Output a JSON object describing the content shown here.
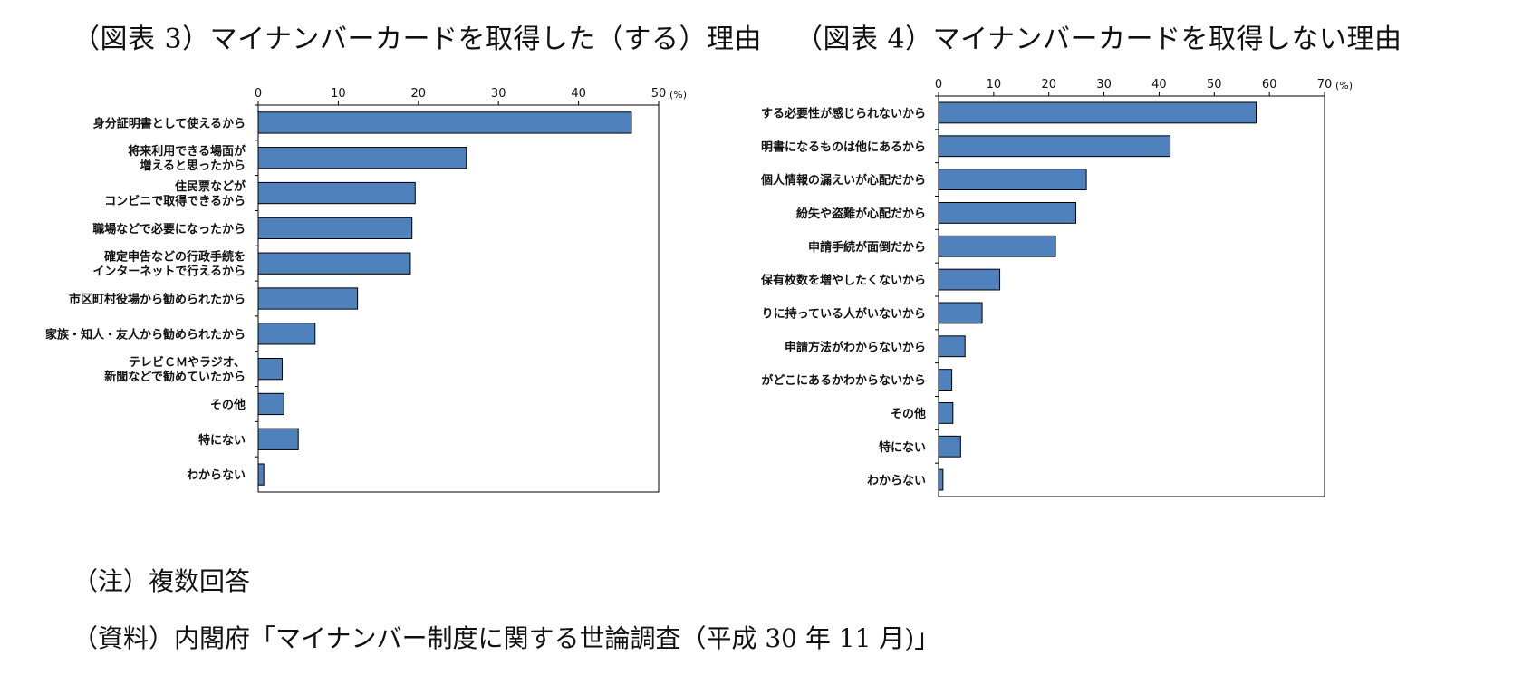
{
  "titles": {
    "left": "（図表 3）マイナンバーカードを取得した（する）理由",
    "right": "（図表 4）マイナンバーカードを取得しない理由"
  },
  "notes": {
    "note": "（注）複数回答",
    "source": "（資料）内閣府「マイナンバー制度に関する世論調査（平成 30 年 11 月)」"
  },
  "colors": {
    "bar": "#4f81bd",
    "bar_stroke": "#000000"
  },
  "chart_data": [
    {
      "type": "bar",
      "orientation": "horizontal",
      "title": "（図表 3）マイナンバーカードを取得した（する）理由",
      "unit": "(%)",
      "xlim": [
        0,
        50
      ],
      "ticks": [
        0,
        10,
        20,
        30,
        40,
        50
      ],
      "categories": [
        [
          "身分証明書として使えるから"
        ],
        [
          "将来利用できる場面が",
          "増えると思ったから"
        ],
        [
          "住民票などが",
          "コンビニで取得できるから"
        ],
        [
          "職場などで必要になったから"
        ],
        [
          "確定申告などの行政手続を",
          "インターネットで行えるから"
        ],
        [
          "市区町村役場から勧められたから"
        ],
        [
          "家族・知人・友人から勧められたから"
        ],
        [
          "テレビＣＭやラジオ、",
          "新聞などで勧めていたから"
        ],
        [
          "その他"
        ],
        [
          "特にない"
        ],
        [
          "わからない"
        ]
      ],
      "values": [
        46.6,
        26.0,
        19.6,
        19.2,
        19.0,
        12.4,
        7.1,
        3.0,
        3.2,
        5.0,
        0.7
      ]
    },
    {
      "type": "bar",
      "orientation": "horizontal",
      "title": "（図表 4）マイナンバーカードを取得しない理由",
      "unit": "(%)",
      "xlim": [
        0,
        70
      ],
      "ticks": [
        0,
        10,
        20,
        30,
        40,
        50,
        60,
        70
      ],
      "categories": [
        [
          "取得する必要性が感じられないから"
        ],
        [
          "身分証明書になるものは他にあるから"
        ],
        [
          "個人情報の漏えいが心配だから"
        ],
        [
          "紛失や盗難が心配だから"
        ],
        [
          "申請手続が面倒だから"
        ],
        [
          "カードの保有枚数を増やしたくないから"
        ],
        [
          "自分の周りに持っている人がいないから"
        ],
        [
          "申請方法がわからないから"
        ],
        [
          "申請書がどこにあるかわからないから"
        ],
        [
          "その他"
        ],
        [
          "特にない"
        ],
        [
          "わからない"
        ]
      ],
      "values": [
        57.6,
        42.0,
        26.8,
        24.9,
        21.2,
        11.1,
        7.9,
        4.8,
        2.4,
        2.6,
        4.0,
        0.8
      ]
    }
  ]
}
